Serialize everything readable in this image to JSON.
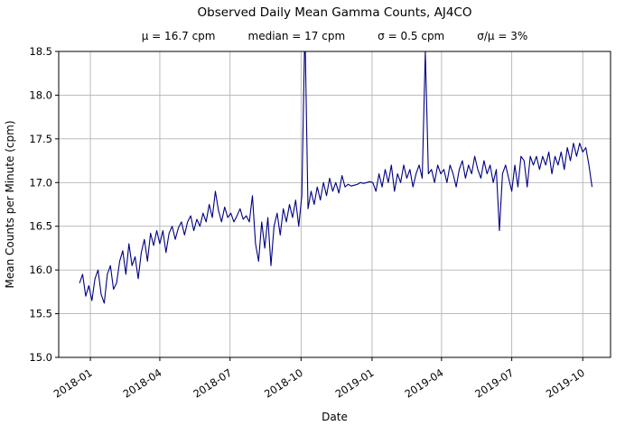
{
  "chart_data": {
    "type": "line",
    "title": "Observed Daily Mean Gamma Counts, AJ4CO",
    "stats": [
      "μ = 16.7 cpm",
      "median = 17 cpm",
      "σ = 0.5 cpm",
      "σ/μ = 3%"
    ],
    "xlabel": "Date",
    "ylabel": "Mean Counts per Minute (cpm)",
    "ylim": [
      15.0,
      18.5
    ],
    "yticks": [
      15.0,
      15.5,
      16.0,
      16.5,
      17.0,
      17.5,
      18.0,
      18.5
    ],
    "xlim_days": [
      -27,
      688
    ],
    "xticks": [
      {
        "offset_days": 14,
        "label": "2018-01"
      },
      {
        "offset_days": 104,
        "label": "2018-04"
      },
      {
        "offset_days": 195,
        "label": "2018-07"
      },
      {
        "offset_days": 287,
        "label": "2018-10"
      },
      {
        "offset_days": 379,
        "label": "2019-01"
      },
      {
        "offset_days": 469,
        "label": "2019-04"
      },
      {
        "offset_days": 560,
        "label": "2019-07"
      },
      {
        "offset_days": 652,
        "label": "2019-10"
      }
    ],
    "grid": true,
    "legend": "none",
    "line_color": "#000080",
    "grid_color": "#b3b3b3",
    "series": [
      {
        "name": "Observed daily mean gamma counts (cpm)",
        "x_start_date": "2017-12-18",
        "x_step_days": 4,
        "values": [
          15.85,
          15.95,
          15.7,
          15.82,
          15.65,
          15.9,
          16.0,
          15.72,
          15.62,
          15.95,
          16.05,
          15.78,
          15.85,
          16.1,
          16.22,
          15.95,
          16.3,
          16.05,
          16.15,
          15.9,
          16.2,
          16.35,
          16.1,
          16.42,
          16.28,
          16.45,
          16.3,
          16.45,
          16.2,
          16.42,
          16.5,
          16.35,
          16.48,
          16.55,
          16.4,
          16.55,
          16.62,
          16.45,
          16.58,
          16.5,
          16.65,
          16.55,
          16.75,
          16.6,
          16.9,
          16.68,
          16.55,
          16.72,
          16.6,
          16.65,
          16.55,
          16.62,
          16.7,
          16.58,
          16.62,
          16.55,
          16.85,
          16.3,
          16.1,
          16.55,
          16.25,
          16.6,
          16.05,
          16.5,
          16.65,
          16.4,
          16.7,
          16.55,
          16.75,
          16.6,
          16.8,
          16.5,
          16.85,
          18.8,
          16.7,
          16.9,
          16.75,
          16.95,
          16.8,
          17.0,
          16.85,
          17.05,
          16.9,
          17.0,
          16.88,
          17.08,
          16.95,
          16.98,
          16.96,
          16.97,
          16.98,
          17.0,
          16.99,
          17.0,
          17.01,
          17.0,
          16.9,
          17.1,
          16.95,
          17.15,
          17.0,
          17.2,
          16.9,
          17.1,
          17.0,
          17.2,
          17.05,
          17.15,
          16.95,
          17.1,
          17.2,
          17.05,
          18.5,
          17.1,
          17.15,
          17.0,
          17.2,
          17.1,
          17.15,
          17.0,
          17.2,
          17.1,
          16.95,
          17.15,
          17.25,
          17.05,
          17.2,
          17.1,
          17.3,
          17.15,
          17.05,
          17.25,
          17.1,
          17.2,
          17.0,
          17.15,
          16.45,
          17.1,
          17.2,
          17.05,
          16.9,
          17.2,
          16.95,
          17.3,
          17.25,
          16.95,
          17.3,
          17.2,
          17.3,
          17.15,
          17.3,
          17.2,
          17.35,
          17.1,
          17.3,
          17.2,
          17.35,
          17.15,
          17.4,
          17.25,
          17.45,
          17.3,
          17.45,
          17.35,
          17.4,
          17.2,
          16.95
        ]
      }
    ]
  }
}
